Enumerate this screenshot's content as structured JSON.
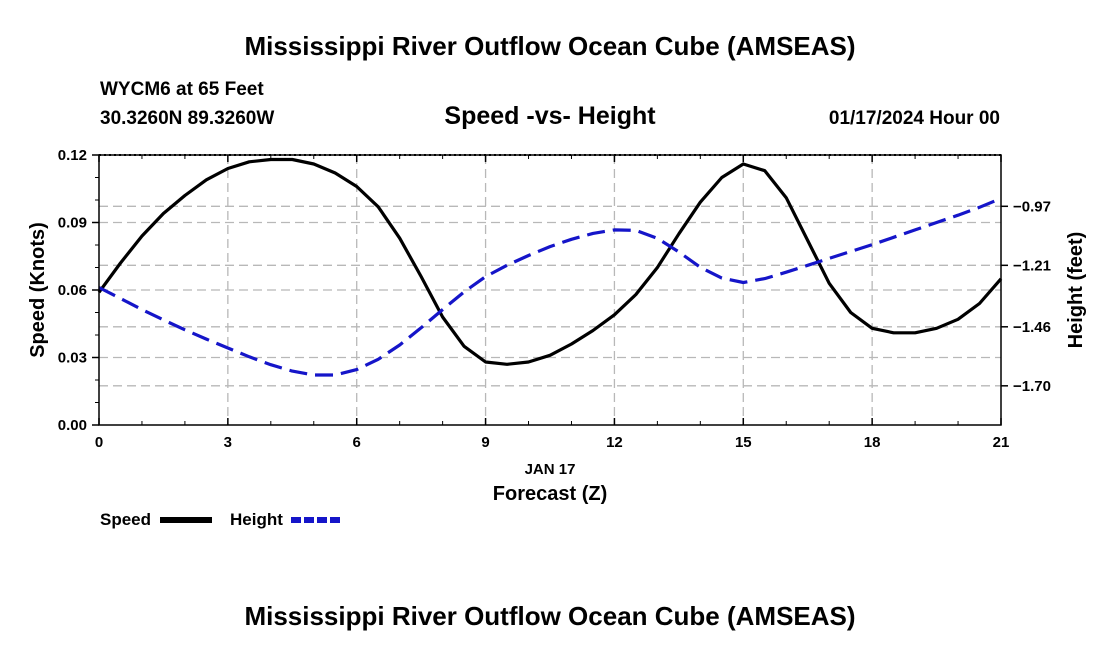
{
  "chart_data": {
    "type": "line",
    "title": "Mississippi River Outflow Ocean Cube (AMSEAS)",
    "footer_title": "Mississippi River Outflow Ocean Cube (AMSEAS)",
    "station": "WYCM6 at 65 Feet",
    "location": "30.3260N  89.3260W",
    "subtitle": "Speed -vs- Height",
    "date_label": "01/17/2024 Hour 00",
    "xlabel": "Forecast (Z)",
    "x_date": "JAN 17",
    "ylabel": "Speed (Knots)",
    "y2label": "Height (feet)",
    "xlim": [
      0,
      21
    ],
    "ylim": [
      0,
      0.12
    ],
    "y2lim": [
      -1.8593,
      -0.7614
    ],
    "x_ticks": [
      0,
      3,
      6,
      9,
      12,
      15,
      18,
      21
    ],
    "x_tick_labels": [
      "0",
      "3",
      "6",
      "9",
      "12",
      "15",
      "18",
      "21"
    ],
    "y_ticks": [
      0,
      0.03,
      0.06,
      0.09,
      0.12
    ],
    "y_tick_labels": [
      "0.00",
      "0.03",
      "0.06",
      "0.09",
      "0.12"
    ],
    "y2_ticks": [
      -1.7,
      -1.46,
      -1.21,
      -0.97
    ],
    "y2_tick_labels": [
      "−1.70",
      "−1.46",
      "−1.21",
      "−0.97"
    ],
    "grid": true,
    "series": [
      {
        "name": "Speed",
        "axis": "left",
        "color": "#000000",
        "style": "solid",
        "x": [
          0,
          0.5,
          1,
          1.5,
          2,
          2.5,
          3,
          3.5,
          4,
          4.5,
          5,
          5.5,
          6,
          6.5,
          7,
          7.5,
          8,
          8.5,
          9,
          9.5,
          10,
          10.5,
          11,
          11.5,
          12,
          12.5,
          13,
          13.5,
          14,
          14.5,
          15,
          15.5,
          16,
          16.5,
          17,
          17.5,
          18,
          18.5,
          19,
          19.5,
          20,
          20.5,
          21
        ],
        "values": [
          0.059,
          0.072,
          0.084,
          0.094,
          0.102,
          0.109,
          0.114,
          0.117,
          0.118,
          0.118,
          0.116,
          0.112,
          0.106,
          0.097,
          0.083,
          0.066,
          0.048,
          0.035,
          0.028,
          0.027,
          0.028,
          0.031,
          0.036,
          0.042,
          0.049,
          0.058,
          0.07,
          0.085,
          0.099,
          0.11,
          0.116,
          0.113,
          0.101,
          0.082,
          0.063,
          0.05,
          0.043,
          0.041,
          0.041,
          0.043,
          0.047,
          0.054,
          0.065
        ]
      },
      {
        "name": "Height",
        "axis": "right",
        "color": "#1515c9",
        "style": "dashed",
        "x": [
          0,
          0.5,
          1,
          1.5,
          2,
          2.5,
          3,
          3.5,
          4,
          4.5,
          5,
          5.5,
          6,
          6.5,
          7,
          7.5,
          8,
          8.5,
          9,
          9.5,
          10,
          10.5,
          11,
          11.5,
          12,
          12.5,
          13,
          13.5,
          14,
          14.5,
          15,
          15.5,
          16,
          16.5,
          17,
          17.5,
          18,
          18.5,
          19,
          19.5,
          20,
          20.5,
          21
        ],
        "values": [
          -1.3,
          -1.345,
          -1.39,
          -1.432,
          -1.472,
          -1.51,
          -1.546,
          -1.582,
          -1.614,
          -1.64,
          -1.656,
          -1.656,
          -1.634,
          -1.592,
          -1.534,
          -1.464,
          -1.39,
          -1.318,
          -1.256,
          -1.21,
          -1.17,
          -1.134,
          -1.104,
          -1.08,
          -1.066,
          -1.068,
          -1.1,
          -1.156,
          -1.218,
          -1.262,
          -1.28,
          -1.264,
          -1.238,
          -1.21,
          -1.182,
          -1.154,
          -1.126,
          -1.096,
          -1.066,
          -1.036,
          -1.006,
          -0.974,
          -0.938
        ]
      }
    ],
    "legend": [
      {
        "label": "Speed",
        "color": "#000000",
        "style": "solid"
      },
      {
        "label": "Height",
        "color": "#1515c9",
        "style": "dashed"
      }
    ]
  }
}
